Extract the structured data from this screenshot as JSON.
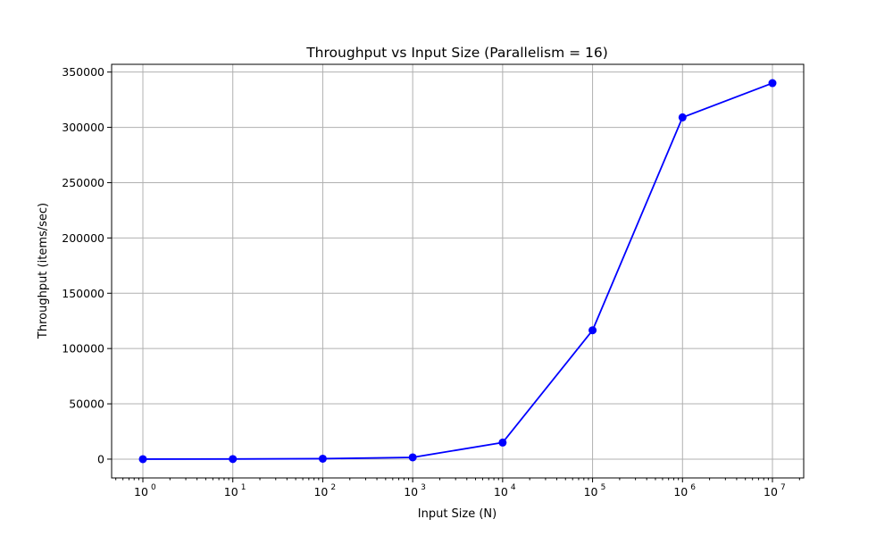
{
  "chart_data": {
    "type": "line",
    "title": "Throughput vs Input Size (Parallelism = 16)",
    "xlabel": "Input Size (N)",
    "ylabel": "Throughput (items/sec)",
    "xscale": "log",
    "x": [
      1,
      10,
      100,
      1000,
      10000,
      100000,
      1000000,
      10000000
    ],
    "x_tick_labels": [
      {
        "base": "10",
        "exp": "0"
      },
      {
        "base": "10",
        "exp": "1"
      },
      {
        "base": "10",
        "exp": "2"
      },
      {
        "base": "10",
        "exp": "3"
      },
      {
        "base": "10",
        "exp": "4"
      },
      {
        "base": "10",
        "exp": "5"
      },
      {
        "base": "10",
        "exp": "6"
      },
      {
        "base": "10",
        "exp": "7"
      }
    ],
    "ylim": [
      -17000,
      357000
    ],
    "y_ticks": [
      0,
      50000,
      100000,
      150000,
      200000,
      250000,
      300000,
      350000
    ],
    "y_tick_labels": [
      "0",
      "50000",
      "100000",
      "150000",
      "200000",
      "250000",
      "300000",
      "350000"
    ],
    "grid": true,
    "series": [
      {
        "values": [
          10,
          100,
          400,
          1600,
          15000,
          116500,
          309000,
          340000
        ],
        "color": "#0000ff",
        "marker": "circle"
      }
    ]
  }
}
